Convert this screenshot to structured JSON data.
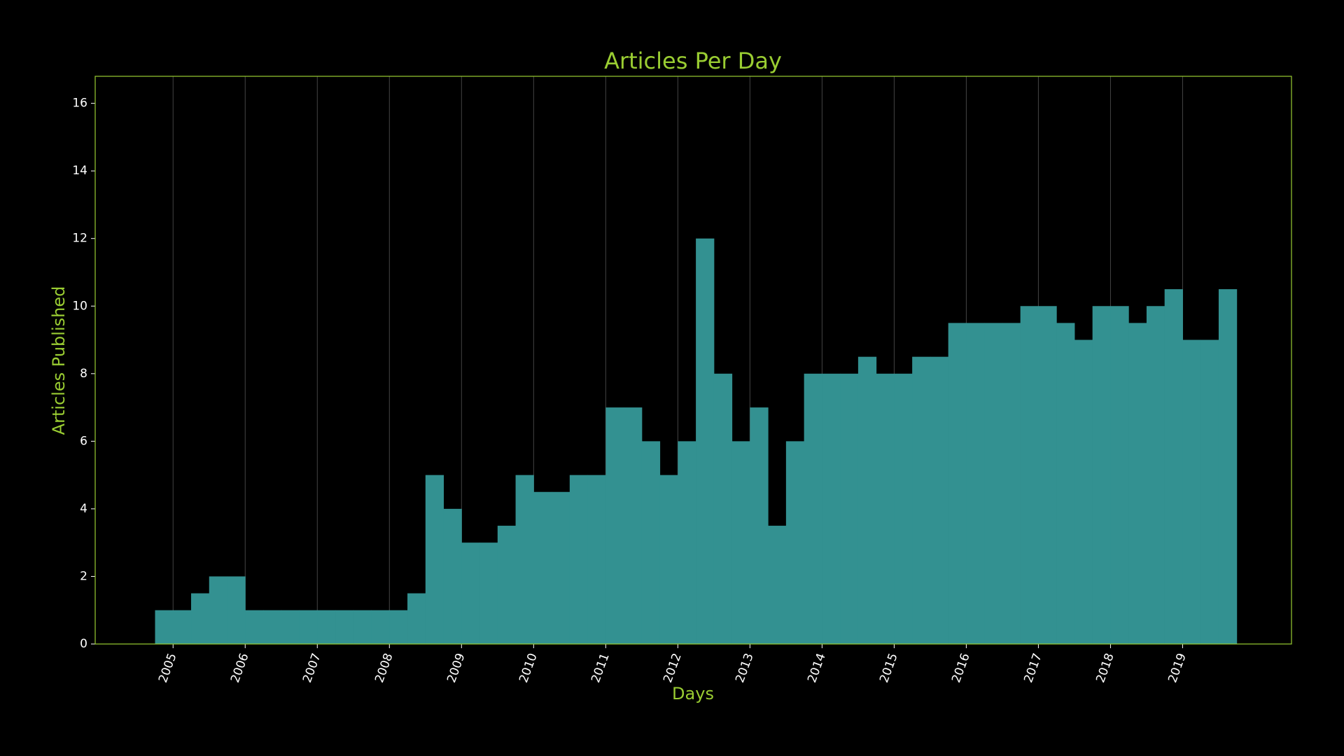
{
  "chart_data": {
    "type": "bar",
    "title": "Articles Per Day",
    "xlabel": "Days",
    "ylabel": "Articles Published",
    "x": [
      2004.75,
      2005.0,
      2005.25,
      2005.5,
      2005.75,
      2006.0,
      2006.25,
      2006.5,
      2006.75,
      2007.0,
      2007.25,
      2007.5,
      2007.75,
      2008.0,
      2008.25,
      2008.5,
      2008.75,
      2009.0,
      2009.25,
      2009.5,
      2009.75,
      2010.0,
      2010.25,
      2010.5,
      2010.75,
      2011.0,
      2011.25,
      2011.5,
      2011.75,
      2012.0,
      2012.25,
      2012.5,
      2012.75,
      2013.0,
      2013.25,
      2013.5,
      2013.75,
      2014.0,
      2014.25,
      2014.5,
      2014.75,
      2015.0,
      2015.25,
      2015.5,
      2015.75,
      2016.0,
      2016.25,
      2016.5,
      2016.75,
      2017.0,
      2017.25,
      2017.5,
      2017.75,
      2018.0,
      2018.25,
      2018.5,
      2018.75,
      2019.0,
      2019.25,
      2019.5
    ],
    "values": [
      1,
      1,
      1.5,
      2,
      2,
      1,
      1,
      1,
      1,
      1,
      1,
      1,
      1,
      1,
      1.5,
      5,
      4,
      3,
      3,
      3.5,
      5,
      4.5,
      4.5,
      5,
      5,
      7,
      7,
      6,
      5,
      6,
      12,
      8,
      6,
      7,
      3.5,
      6,
      8,
      8,
      8,
      8.5,
      8,
      8,
      8.5,
      8.5,
      9.5,
      9.5,
      9.5,
      9.5,
      10,
      10,
      9.5,
      9,
      10,
      10,
      9.5,
      10,
      10.5,
      9,
      9,
      10.5
    ],
    "color": "#339191",
    "frame_color": "#9acd32",
    "xlim": [
      2003.92,
      2020.51
    ],
    "xticks": [
      2005,
      2006,
      2007,
      2008,
      2009,
      2010,
      2011,
      2012,
      2013,
      2014,
      2015,
      2016,
      2017,
      2018,
      2019
    ],
    "ylim": [
      0,
      16.8
    ],
    "yticks": [
      0,
      2,
      4,
      6,
      8,
      10,
      12,
      14,
      16
    ],
    "grid": "x"
  }
}
